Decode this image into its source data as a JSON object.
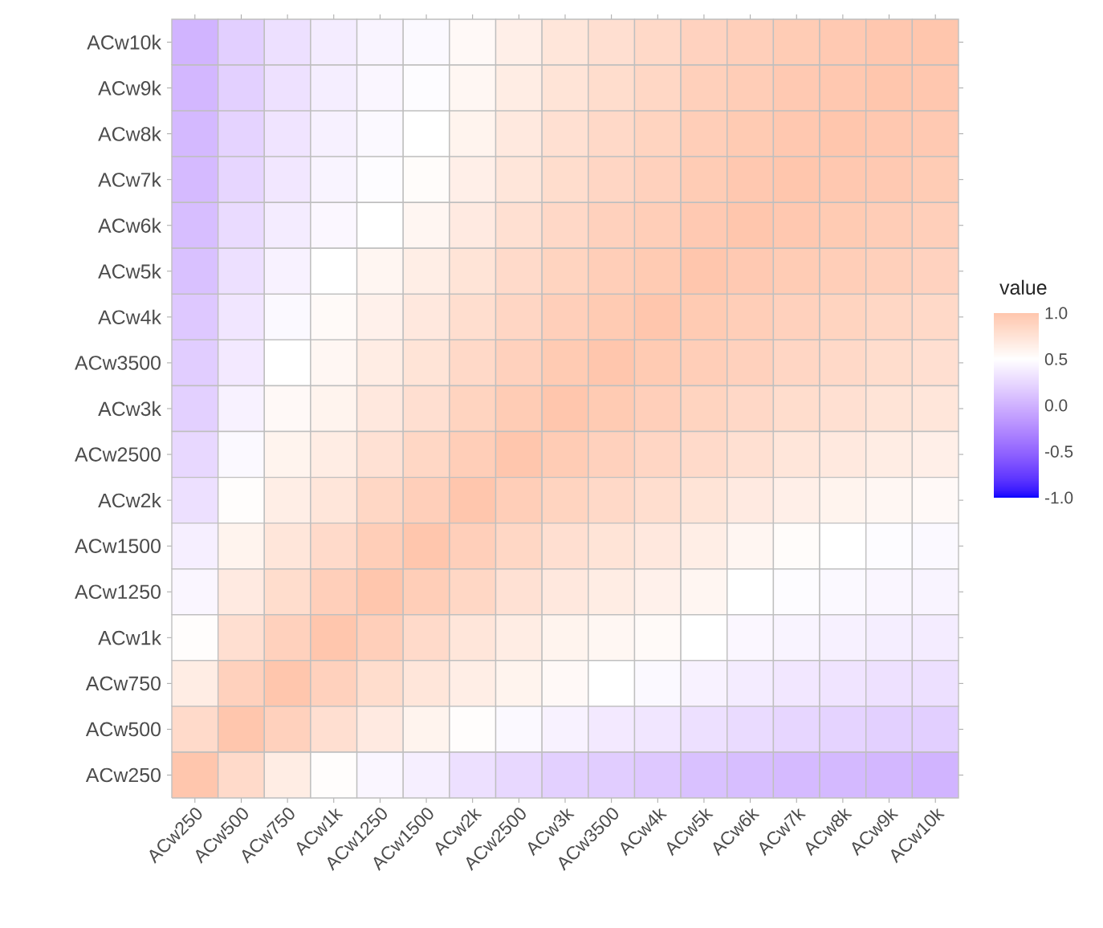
{
  "chart_data": {
    "type": "heatmap",
    "clabel": "value",
    "categories": [
      "ACw250",
      "ACw500",
      "ACw750",
      "ACw1k",
      "ACw1250",
      "ACw1500",
      "ACw2k",
      "ACw2500",
      "ACw3k",
      "ACw3500",
      "ACw4k",
      "ACw5k",
      "ACw6k",
      "ACw7k",
      "ACw8k",
      "ACw9k",
      "ACw10k"
    ],
    "y_categories": [
      "ACw10k",
      "ACw9k",
      "ACw8k",
      "ACw7k",
      "ACw6k",
      "ACw5k",
      "ACw4k",
      "ACw3500",
      "ACw3k",
      "ACw2500",
      "ACw2k",
      "ACw1500",
      "ACw1250",
      "ACw1k",
      "ACw750",
      "ACw500",
      "ACw250"
    ],
    "cells": [
      [
        0.02,
        0.19,
        0.3,
        0.38,
        0.43,
        0.46,
        0.55,
        0.64,
        0.72,
        0.78,
        0.83,
        0.89,
        0.92,
        0.95,
        0.97,
        0.99,
        1
      ],
      [
        0.04,
        0.2,
        0.31,
        0.39,
        0.44,
        0.48,
        0.57,
        0.66,
        0.74,
        0.8,
        0.85,
        0.91,
        0.94,
        0.97,
        0.98,
        1,
        0.99
      ],
      [
        0.05,
        0.22,
        0.33,
        0.41,
        0.46,
        0.5,
        0.6,
        0.69,
        0.77,
        0.83,
        0.88,
        0.93,
        0.96,
        0.98,
        1,
        0.98,
        0.97
      ],
      [
        0.06,
        0.24,
        0.35,
        0.43,
        0.48,
        0.53,
        0.64,
        0.72,
        0.8,
        0.86,
        0.9,
        0.95,
        0.98,
        1,
        0.98,
        0.97,
        0.95
      ],
      [
        0.08,
        0.27,
        0.38,
        0.45,
        0.5,
        0.58,
        0.68,
        0.77,
        0.84,
        0.9,
        0.93,
        0.97,
        1,
        0.98,
        0.96,
        0.94,
        0.92
      ],
      [
        0.1,
        0.3,
        0.42,
        0.5,
        0.58,
        0.65,
        0.74,
        0.82,
        0.88,
        0.93,
        0.96,
        1,
        0.97,
        0.95,
        0.93,
        0.91,
        0.89
      ],
      [
        0.15,
        0.34,
        0.46,
        0.54,
        0.62,
        0.7,
        0.79,
        0.86,
        0.92,
        0.96,
        1,
        0.96,
        0.93,
        0.9,
        0.88,
        0.85,
        0.83
      ],
      [
        0.18,
        0.36,
        0.5,
        0.57,
        0.66,
        0.74,
        0.83,
        0.9,
        0.96,
        1,
        0.96,
        0.93,
        0.9,
        0.86,
        0.83,
        0.8,
        0.78
      ],
      [
        0.2,
        0.42,
        0.55,
        0.6,
        0.7,
        0.78,
        0.88,
        0.95,
        1,
        0.96,
        0.92,
        0.88,
        0.84,
        0.8,
        0.77,
        0.74,
        0.72
      ],
      [
        0.25,
        0.46,
        0.6,
        0.66,
        0.76,
        0.85,
        0.93,
        1,
        0.95,
        0.9,
        0.86,
        0.82,
        0.77,
        0.72,
        0.69,
        0.66,
        0.64
      ],
      [
        0.3,
        0.52,
        0.65,
        0.72,
        0.85,
        0.92,
        1,
        0.93,
        0.88,
        0.83,
        0.79,
        0.74,
        0.68,
        0.64,
        0.6,
        0.57,
        0.55
      ],
      [
        0.4,
        0.6,
        0.72,
        0.82,
        0.93,
        1,
        0.92,
        0.85,
        0.78,
        0.74,
        0.7,
        0.65,
        0.58,
        0.53,
        0.5,
        0.48,
        0.46
      ],
      [
        0.44,
        0.68,
        0.8,
        0.92,
        1,
        0.93,
        0.85,
        0.76,
        0.7,
        0.66,
        0.62,
        0.58,
        0.5,
        0.48,
        0.46,
        0.44,
        0.43
      ],
      [
        0.52,
        0.78,
        0.9,
        1,
        0.92,
        0.82,
        0.72,
        0.66,
        0.6,
        0.57,
        0.54,
        0.5,
        0.45,
        0.43,
        0.41,
        0.39,
        0.38
      ],
      [
        0.66,
        0.9,
        1,
        0.9,
        0.8,
        0.72,
        0.65,
        0.6,
        0.55,
        0.5,
        0.46,
        0.42,
        0.38,
        0.35,
        0.33,
        0.31,
        0.3
      ],
      [
        0.82,
        1,
        0.9,
        0.78,
        0.68,
        0.6,
        0.52,
        0.46,
        0.42,
        0.36,
        0.34,
        0.3,
        0.27,
        0.24,
        0.22,
        0.2,
        0.19
      ],
      [
        1,
        0.82,
        0.66,
        0.52,
        0.44,
        0.4,
        0.3,
        0.25,
        0.2,
        0.18,
        0.15,
        0.1,
        0.08,
        0.06,
        0.05,
        0.04,
        0.02
      ]
    ],
    "clim": [
      -1,
      1
    ],
    "cticks": [
      {
        "value": -1,
        "label": "-1.0"
      },
      {
        "value": -0.5,
        "label": "-0.5"
      },
      {
        "value": 0,
        "label": "0.0"
      },
      {
        "value": 0.5,
        "label": "0.5"
      },
      {
        "value": 1,
        "label": "1.0"
      }
    ]
  }
}
